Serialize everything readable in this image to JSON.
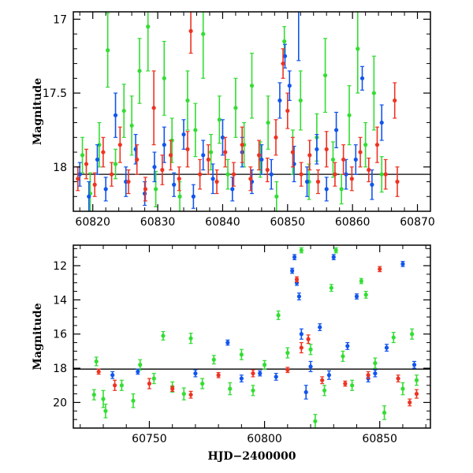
{
  "chart_data": [
    {
      "type": "scatter",
      "panel": "top",
      "title": "",
      "xlabel": "",
      "ylabel": "Magnitude",
      "xlim": [
        60817,
        60872
      ],
      "ylim": [
        18.3,
        16.95
      ],
      "y_inverted": true,
      "grid": false,
      "xticks": [
        60820,
        60830,
        60840,
        60850,
        60860,
        60870
      ],
      "yticks": [
        17,
        17.5,
        18
      ],
      "xtick_labels": [
        "60820",
        "60830",
        "60840",
        "60850",
        "60860",
        "60870"
      ],
      "ytick_labels": [
        "17",
        "17.5",
        "18"
      ],
      "reference_line": {
        "y": 18.05,
        "x_start": 60817,
        "x_end": 60872
      },
      "series": [
        {
          "color": "#33dd33",
          "points": [
            [
              60818.4,
              17.92,
              0.12
            ],
            [
              60819.6,
              18.18,
              0.14
            ],
            [
              60821.0,
              17.85,
              0.15
            ],
            [
              60822.3,
              17.21,
              0.25
            ],
            [
              60823.5,
              17.98,
              0.1
            ],
            [
              60824.8,
              17.62,
              0.18
            ],
            [
              60826.0,
              17.72,
              0.2
            ],
            [
              60827.2,
              17.35,
              0.22
            ],
            [
              60828.5,
              17.05,
              0.3
            ],
            [
              60829.7,
              18.15,
              0.12
            ],
            [
              60831.0,
              17.4,
              0.25
            ],
            [
              60832.2,
              17.82,
              0.15
            ],
            [
              60833.4,
              18.2,
              0.1
            ],
            [
              60834.6,
              17.55,
              0.2
            ],
            [
              60835.8,
              17.75,
              0.18
            ],
            [
              60837.0,
              17.1,
              0.3
            ],
            [
              60838.2,
              17.9,
              0.12
            ],
            [
              60839.5,
              17.68,
              0.16
            ],
            [
              60840.8,
              18.05,
              0.1
            ],
            [
              60842.0,
              17.6,
              0.2
            ],
            [
              60843.3,
              17.85,
              0.15
            ],
            [
              60844.5,
              17.45,
              0.22
            ],
            [
              60845.8,
              17.95,
              0.12
            ],
            [
              60847.0,
              17.7,
              0.18
            ],
            [
              60848.3,
              18.2,
              0.1
            ],
            [
              60849.5,
              17.15,
              0.1
            ],
            [
              60850.8,
              17.9,
              0.15
            ],
            [
              60852.0,
              17.55,
              0.2
            ],
            [
              60853.3,
              18.1,
              0.12
            ],
            [
              60854.5,
              17.8,
              0.16
            ],
            [
              60855.8,
              17.38,
              0.25
            ],
            [
              60857.0,
              17.95,
              0.12
            ],
            [
              60858.3,
              18.15,
              0.1
            ],
            [
              60859.5,
              17.65,
              0.2
            ],
            [
              60860.8,
              17.2,
              0.3
            ],
            [
              60862.0,
              17.85,
              0.15
            ],
            [
              60863.3,
              17.5,
              0.25
            ],
            [
              60864.5,
              18.05,
              0.12
            ]
          ]
        },
        {
          "color": "#1155ee",
          "points": [
            [
              60818.0,
              18.05,
              0.08
            ],
            [
              60819.4,
              18.2,
              0.1
            ],
            [
              60820.7,
              17.95,
              0.1
            ],
            [
              60822.0,
              18.15,
              0.08
            ],
            [
              60823.5,
              17.65,
              0.15
            ],
            [
              60825.1,
              18.1,
              0.1
            ],
            [
              60826.6,
              17.88,
              0.1
            ],
            [
              60828.0,
              18.18,
              0.08
            ],
            [
              60829.5,
              18.0,
              0.1
            ],
            [
              60831.0,
              17.85,
              0.12
            ],
            [
              60832.5,
              18.12,
              0.08
            ],
            [
              60834.0,
              17.78,
              0.1
            ],
            [
              60835.5,
              18.2,
              0.08
            ],
            [
              60837.0,
              17.92,
              0.1
            ],
            [
              60838.5,
              18.08,
              0.1
            ],
            [
              60840.0,
              17.8,
              0.12
            ],
            [
              60841.5,
              18.15,
              0.08
            ],
            [
              60843.0,
              17.9,
              0.1
            ],
            [
              60844.5,
              18.1,
              0.08
            ],
            [
              60846.0,
              17.95,
              0.1
            ],
            [
              60847.5,
              18.05,
              0.1
            ],
            [
              60848.8,
              17.55,
              0.12
            ],
            [
              60849.6,
              17.25,
              0.08
            ],
            [
              60850.3,
              17.45,
              0.1
            ],
            [
              60851.0,
              17.98,
              0.12
            ],
            [
              60851.7,
              16.93,
              0.35
            ],
            [
              60853.0,
              18.1,
              0.1
            ],
            [
              60854.5,
              17.88,
              0.1
            ],
            [
              60856.0,
              18.15,
              0.08
            ],
            [
              60857.5,
              17.75,
              0.12
            ],
            [
              60859.0,
              18.05,
              0.1
            ],
            [
              60860.5,
              17.95,
              0.1
            ],
            [
              60861.5,
              17.4,
              0.08
            ],
            [
              60863.0,
              18.12,
              0.1
            ],
            [
              60864.5,
              17.7,
              0.12
            ]
          ]
        },
        {
          "color": "#ee3322",
          "points": [
            [
              60817.7,
              18.08,
              0.08
            ],
            [
              60819.0,
              17.98,
              0.1
            ],
            [
              60820.3,
              18.12,
              0.08
            ],
            [
              60821.6,
              17.9,
              0.1
            ],
            [
              60822.9,
              18.05,
              0.08
            ],
            [
              60824.2,
              17.85,
              0.12
            ],
            [
              60825.5,
              18.1,
              0.08
            ],
            [
              60826.8,
              17.95,
              0.1
            ],
            [
              60828.1,
              18.15,
              0.08
            ],
            [
              60829.4,
              17.6,
              0.25
            ],
            [
              60830.7,
              18.02,
              0.1
            ],
            [
              60832.0,
              17.92,
              0.1
            ],
            [
              60833.3,
              18.08,
              0.08
            ],
            [
              60834.6,
              17.88,
              0.12
            ],
            [
              60835.1,
              17.08,
              0.15
            ],
            [
              60836.5,
              18.05,
              0.1
            ],
            [
              60837.8,
              17.95,
              0.1
            ],
            [
              60839.1,
              18.1,
              0.08
            ],
            [
              60840.4,
              17.9,
              0.1
            ],
            [
              60841.7,
              18.05,
              0.08
            ],
            [
              60843.0,
              17.85,
              0.12
            ],
            [
              60844.3,
              18.08,
              0.08
            ],
            [
              60845.6,
              17.92,
              0.1
            ],
            [
              60846.9,
              18.02,
              0.08
            ],
            [
              60848.2,
              17.8,
              0.12
            ],
            [
              60849.3,
              17.3,
              0.1
            ],
            [
              60850.0,
              17.62,
              0.12
            ],
            [
              60850.8,
              17.9,
              0.1
            ],
            [
              60852.1,
              18.05,
              0.08
            ],
            [
              60853.4,
              17.92,
              0.1
            ],
            [
              60854.7,
              18.1,
              0.08
            ],
            [
              60856.0,
              17.88,
              0.12
            ],
            [
              60857.3,
              18.05,
              0.08
            ],
            [
              60858.6,
              17.95,
              0.1
            ],
            [
              60859.9,
              18.08,
              0.08
            ],
            [
              60861.2,
              17.9,
              0.1
            ],
            [
              60862.5,
              18.02,
              0.08
            ],
            [
              60863.8,
              17.85,
              0.12
            ],
            [
              60865.1,
              18.05,
              0.1
            ],
            [
              60866.5,
              17.55,
              0.12
            ],
            [
              60866.9,
              18.1,
              0.1
            ]
          ]
        }
      ]
    },
    {
      "type": "scatter",
      "panel": "bottom",
      "title": "",
      "xlabel": "HJD−2400000",
      "ylabel": "Magnitude",
      "xlim": [
        60717,
        60872
      ],
      "ylim": [
        21.5,
        10.8
      ],
      "y_inverted": true,
      "grid": false,
      "xticks": [
        60750,
        60800,
        60850
      ],
      "yticks": [
        12,
        14,
        16,
        18,
        20
      ],
      "xtick_labels": [
        "60750",
        "60800",
        "60850"
      ],
      "ytick_labels": [
        "12",
        "14",
        "16",
        "18",
        "20"
      ],
      "reference_line": {
        "y": 18.05,
        "x_start": 60717,
        "x_end": 60872
      },
      "series": [
        {
          "color": "#33dd33",
          "points": [
            [
              60726,
              19.55,
              0.3
            ],
            [
              60727,
              17.6,
              0.25
            ],
            [
              60730,
              19.8,
              0.5
            ],
            [
              60731,
              20.5,
              0.4
            ],
            [
              60738,
              19.0,
              0.3
            ],
            [
              60743,
              19.9,
              0.4
            ],
            [
              60746,
              17.8,
              0.3
            ],
            [
              60752,
              18.6,
              0.3
            ],
            [
              60756,
              16.1,
              0.25
            ],
            [
              60760,
              19.1,
              0.3
            ],
            [
              60765,
              19.5,
              0.35
            ],
            [
              60768,
              16.25,
              0.3
            ],
            [
              60773,
              18.9,
              0.3
            ],
            [
              60778,
              17.5,
              0.25
            ],
            [
              60785,
              19.2,
              0.35
            ],
            [
              60790,
              17.2,
              0.3
            ],
            [
              60795,
              19.3,
              0.3
            ],
            [
              60800,
              17.8,
              0.25
            ],
            [
              60806,
              14.9,
              0.25
            ],
            [
              60810,
              17.1,
              0.3
            ],
            [
              60816,
              11.1,
              0.15
            ],
            [
              60820,
              16.9,
              0.3
            ],
            [
              60822,
              21.1,
              0.4
            ],
            [
              60826,
              19.3,
              0.3
            ],
            [
              60829,
              13.3,
              0.2
            ],
            [
              60831,
              11.1,
              0.15
            ],
            [
              60834,
              17.3,
              0.3
            ],
            [
              60838,
              19.0,
              0.3
            ],
            [
              60842,
              12.9,
              0.15
            ],
            [
              60844,
              13.7,
              0.2
            ],
            [
              60848,
              17.7,
              0.3
            ],
            [
              60852,
              20.6,
              0.4
            ],
            [
              60856,
              16.2,
              0.3
            ],
            [
              60860,
              19.2,
              0.35
            ],
            [
              60864,
              16.0,
              0.3
            ],
            [
              60866,
              18.7,
              0.3
            ]
          ]
        },
        {
          "color": "#1155ee",
          "points": [
            [
              60734,
              18.4,
              0.2
            ],
            [
              60745,
              18.2,
              0.15
            ],
            [
              60770,
              18.3,
              0.2
            ],
            [
              60784,
              16.5,
              0.15
            ],
            [
              60790,
              18.6,
              0.2
            ],
            [
              60798,
              18.3,
              0.15
            ],
            [
              60805,
              18.5,
              0.2
            ],
            [
              60812,
              12.3,
              0.15
            ],
            [
              60813,
              11.5,
              0.15
            ],
            [
              60814,
              13.0,
              0.15
            ],
            [
              60815,
              13.8,
              0.2
            ],
            [
              60816,
              16.0,
              0.3
            ],
            [
              60818,
              19.4,
              0.4
            ],
            [
              60820,
              17.9,
              0.3
            ],
            [
              60824,
              15.6,
              0.2
            ],
            [
              60828,
              18.4,
              0.25
            ],
            [
              60830,
              11.5,
              0.15
            ],
            [
              60836,
              16.7,
              0.2
            ],
            [
              60840,
              13.8,
              0.15
            ],
            [
              60845,
              18.6,
              0.2
            ],
            [
              60848,
              18.3,
              0.2
            ],
            [
              60853,
              16.8,
              0.2
            ],
            [
              60860,
              11.9,
              0.15
            ],
            [
              60865,
              17.8,
              0.2
            ]
          ]
        },
        {
          "color": "#ee3322",
          "points": [
            [
              60728,
              18.2,
              0.15
            ],
            [
              60735,
              19.0,
              0.3
            ],
            [
              60750,
              18.9,
              0.3
            ],
            [
              60760,
              19.2,
              0.15
            ],
            [
              60768,
              19.55,
              0.2
            ],
            [
              60780,
              18.4,
              0.15
            ],
            [
              60795,
              18.3,
              0.2
            ],
            [
              60810,
              18.1,
              0.15
            ],
            [
              60814,
              12.8,
              0.15
            ],
            [
              60816,
              16.8,
              0.3
            ],
            [
              60819,
              16.3,
              0.25
            ],
            [
              60825,
              18.7,
              0.2
            ],
            [
              60835,
              18.9,
              0.15
            ],
            [
              60845,
              18.4,
              0.2
            ],
            [
              60850,
              12.2,
              0.15
            ],
            [
              60858,
              18.6,
              0.2
            ],
            [
              60863,
              20.0,
              0.2
            ],
            [
              60866,
              19.5,
              0.25
            ]
          ]
        }
      ]
    }
  ]
}
